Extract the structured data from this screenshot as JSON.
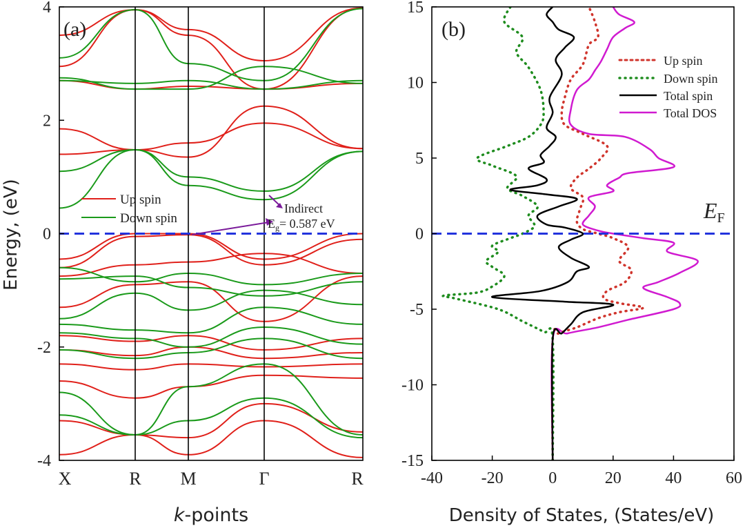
{
  "chart_data": [
    {
      "panel_label": "(a)",
      "type": "line",
      "ylabel": "Energy, (eV)",
      "xlabel_italic": "k",
      "xlabel_rest": "-points",
      "ylim": [
        -4,
        4
      ],
      "y_ticks": [
        {
          "value": -4,
          "label": "-4"
        },
        {
          "value": -2,
          "label": "-2"
        },
        {
          "value": 0,
          "label": "0"
        },
        {
          "value": 2,
          "label": "2"
        },
        {
          "value": 4,
          "label": "4"
        }
      ],
      "k_points": [
        {
          "label": "X",
          "pos": 0
        },
        {
          "label": "R",
          "pos": 1
        },
        {
          "label": "M",
          "pos": 1.7
        },
        {
          "label": "Γ",
          "pos": 2.7
        },
        {
          "label": "R",
          "pos": 4.0
        }
      ],
      "series": [
        {
          "name": "Up spin",
          "color": "#e0201a"
        },
        {
          "name": "Down spin",
          "color": "#1a9a1a"
        }
      ],
      "bands": {
        "up": [
          [
            2.95,
            3.95,
            3.6,
            3.05,
            3.98
          ],
          [
            1.85,
            1.48,
            1.6,
            1.95,
            1.5
          ],
          [
            1.4,
            1.48,
            1.35,
            2.25,
            1.5
          ],
          [
            3.5,
            3.95,
            3.5,
            2.55,
            3.98
          ],
          [
            2.7,
            2.55,
            2.6,
            2.55,
            2.65
          ],
          [
            -0.45,
            0.0,
            0.0,
            -0.45,
            0.0
          ],
          [
            -0.6,
            -0.05,
            -0.02,
            -0.55,
            -0.1
          ],
          [
            -0.75,
            -0.55,
            -0.5,
            -0.35,
            -0.7
          ],
          [
            -1.3,
            -0.9,
            -0.85,
            -1.55,
            -0.75
          ],
          [
            -1.8,
            -1.9,
            -1.8,
            -2.05,
            -1.85
          ],
          [
            -2.05,
            -2.15,
            -2.0,
            -2.2,
            -2.1
          ],
          [
            -2.3,
            -2.4,
            -2.3,
            -2.35,
            -2.3
          ],
          [
            -2.6,
            -2.9,
            -2.7,
            -2.5,
            -2.55
          ],
          [
            -3.3,
            -3.55,
            -3.6,
            -3.0,
            -3.5
          ],
          [
            -3.9,
            -3.55,
            -3.9,
            -3.3,
            -3.95
          ]
        ],
        "down": [
          [
            3.1,
            3.95,
            3.0,
            2.7,
            3.97
          ],
          [
            2.75,
            2.55,
            2.55,
            2.95,
            2.65
          ],
          [
            2.7,
            2.65,
            2.7,
            2.55,
            2.7
          ],
          [
            0.45,
            1.48,
            0.85,
            0.6,
            1.45
          ],
          [
            1.1,
            1.48,
            1.0,
            0.75,
            1.45
          ],
          [
            -0.6,
            -0.85,
            -0.7,
            -0.9,
            -0.7
          ],
          [
            -0.8,
            -0.75,
            -0.95,
            -1.1,
            -0.85
          ],
          [
            -1.5,
            -1.05,
            -1.35,
            -1.0,
            -1.25
          ],
          [
            -1.6,
            -1.7,
            -1.75,
            -1.3,
            -1.6
          ],
          [
            -1.75,
            -1.85,
            -2.0,
            -1.65,
            -1.95
          ],
          [
            -2.05,
            -2.2,
            -2.1,
            -1.85,
            -2.2
          ],
          [
            -2.8,
            -3.55,
            -2.7,
            -2.3,
            -3.55
          ],
          [
            -3.2,
            -3.55,
            -3.3,
            -2.9,
            -3.6
          ]
        ]
      },
      "fermi_level": 0,
      "annotation": {
        "line1": "Indirect",
        "gap_symbol": "E",
        "gap_sub": "g",
        "gap_value": "= 0.587 eV"
      }
    },
    {
      "panel_label": "(b)",
      "type": "line",
      "xlabel": "Density of States, (States/eV)",
      "xlim": [
        -40,
        60
      ],
      "ylim": [
        -15,
        15
      ],
      "x_ticks": [
        {
          "value": -40,
          "label": "-40"
        },
        {
          "value": -20,
          "label": "-20"
        },
        {
          "value": 0,
          "label": "0"
        },
        {
          "value": 20,
          "label": "20"
        },
        {
          "value": 40,
          "label": "40"
        },
        {
          "value": 60,
          "label": "60"
        }
      ],
      "y_ticks": [
        {
          "value": -15,
          "label": "-15"
        },
        {
          "value": -10,
          "label": "-10"
        },
        {
          "value": -5,
          "label": "-5"
        },
        {
          "value": 0,
          "label": "0"
        },
        {
          "value": 5,
          "label": "5"
        },
        {
          "value": 10,
          "label": "10"
        },
        {
          "value": 15,
          "label": "15"
        }
      ],
      "fermi_label_main": "E",
      "fermi_label_sub": "F",
      "legend_position": "top-right",
      "series": [
        {
          "name": "Up spin",
          "color": "#d0342c",
          "style": "dotted",
          "points": [
            [
              0,
              -15
            ],
            [
              0,
              -7
            ],
            [
              2,
              -6.6
            ],
            [
              8,
              -6.2
            ],
            [
              15,
              -5.6
            ],
            [
              22,
              -5.2
            ],
            [
              30,
              -4.9
            ],
            [
              22,
              -4.6
            ],
            [
              17,
              -4.3
            ],
            [
              18,
              -3.8
            ],
            [
              24,
              -3.2
            ],
            [
              26,
              -2.4
            ],
            [
              22,
              -1.8
            ],
            [
              25,
              -0.9
            ],
            [
              20,
              -0.3
            ],
            [
              15,
              0
            ],
            [
              10,
              0.3
            ],
            [
              8,
              0.8
            ],
            [
              9,
              1.6
            ],
            [
              10,
              2.4
            ],
            [
              6,
              3.0
            ],
            [
              8,
              3.7
            ],
            [
              12,
              4.3
            ],
            [
              16,
              5.0
            ],
            [
              18,
              5.8
            ],
            [
              10,
              6.6
            ],
            [
              4,
              7.2
            ],
            [
              3,
              8.0
            ],
            [
              4,
              9.0
            ],
            [
              6,
              10.2
            ],
            [
              10,
              11.2
            ],
            [
              12,
              12.5
            ],
            [
              15,
              13.0
            ],
            [
              14,
              14.0
            ],
            [
              12,
              15
            ]
          ]
        },
        {
          "name": "Down spin",
          "color": "#1e8c1e",
          "style": "dotted",
          "points": [
            [
              0,
              -15
            ],
            [
              0,
              -7
            ],
            [
              -3,
              -6.5
            ],
            [
              -10,
              -5.8
            ],
            [
              -18,
              -5.0
            ],
            [
              -32,
              -4.3
            ],
            [
              -36,
              -4.1
            ],
            [
              -25,
              -3.9
            ],
            [
              -20,
              -3.5
            ],
            [
              -16,
              -2.8
            ],
            [
              -20,
              -2.2
            ],
            [
              -22,
              -1.8
            ],
            [
              -18,
              -1.2
            ],
            [
              -20,
              -0.8
            ],
            [
              -14,
              -0.3
            ],
            [
              -10,
              0
            ],
            [
              -6,
              0.5
            ],
            [
              -8,
              1.2
            ],
            [
              -5,
              1.8
            ],
            [
              -10,
              2.5
            ],
            [
              -15,
              3.0
            ],
            [
              -12,
              3.8
            ],
            [
              -20,
              4.5
            ],
            [
              -25,
              5.0
            ],
            [
              -15,
              5.8
            ],
            [
              -8,
              6.4
            ],
            [
              -4,
              7.2
            ],
            [
              -3,
              8.0
            ],
            [
              -4,
              9.5
            ],
            [
              -8,
              11.0
            ],
            [
              -12,
              12.0
            ],
            [
              -10,
              13.0
            ],
            [
              -16,
              14.0
            ],
            [
              -14,
              15
            ]
          ]
        },
        {
          "name": "Total spin",
          "color": "#000000",
          "style": "solid",
          "points": [
            [
              0,
              -15
            ],
            [
              0,
              -7
            ],
            [
              3,
              -6.6
            ],
            [
              6,
              -6.0
            ],
            [
              10,
              -5.2
            ],
            [
              20,
              -4.7
            ],
            [
              4,
              -4.5
            ],
            [
              -20,
              -4.2
            ],
            [
              -4,
              -3.8
            ],
            [
              5,
              -3.2
            ],
            [
              8,
              -2.5
            ],
            [
              12,
              -2.2
            ],
            [
              6,
              -1.6
            ],
            [
              2,
              -0.9
            ],
            [
              6,
              -0.4
            ],
            [
              10,
              0
            ],
            [
              4,
              0.4
            ],
            [
              -2,
              0.6
            ],
            [
              -5,
              1.2
            ],
            [
              2,
              1.8
            ],
            [
              8,
              2.3
            ],
            [
              -2,
              2.6
            ],
            [
              -14,
              2.9
            ],
            [
              -5,
              3.2
            ],
            [
              -2,
              3.6
            ],
            [
              -8,
              4.3
            ],
            [
              -3,
              4.7
            ],
            [
              -4,
              5.2
            ],
            [
              -1,
              5.8
            ],
            [
              1,
              6.4
            ],
            [
              -2,
              7.0
            ],
            [
              0,
              8.0
            ],
            [
              -1,
              9.0
            ],
            [
              3,
              10.5
            ],
            [
              1,
              11.5
            ],
            [
              4,
              12.3
            ],
            [
              7,
              13.0
            ],
            [
              2,
              13.5
            ],
            [
              0,
              14.0
            ],
            [
              -2,
              14.5
            ],
            [
              0,
              15
            ]
          ]
        },
        {
          "name": "Total DOS",
          "color": "#d01ad0",
          "style": "solid",
          "points": [
            [
              0,
              -15
            ],
            [
              0,
              -7
            ],
            [
              5,
              -6.6
            ],
            [
              15,
              -6.2
            ],
            [
              25,
              -5.7
            ],
            [
              40,
              -5.0
            ],
            [
              42,
              -4.6
            ],
            [
              38,
              -4.2
            ],
            [
              30,
              -3.6
            ],
            [
              35,
              -3.2
            ],
            [
              42,
              -2.6
            ],
            [
              48,
              -1.8
            ],
            [
              38,
              -1.2
            ],
            [
              40,
              -0.6
            ],
            [
              30,
              -0.3
            ],
            [
              20,
              0
            ],
            [
              15,
              0.2
            ],
            [
              10,
              0.6
            ],
            [
              12,
              1.2
            ],
            [
              14,
              1.8
            ],
            [
              12,
              2.4
            ],
            [
              20,
              2.8
            ],
            [
              18,
              3.2
            ],
            [
              22,
              3.7
            ],
            [
              25,
              4.0
            ],
            [
              40,
              4.4
            ],
            [
              35,
              5.0
            ],
            [
              32,
              5.6
            ],
            [
              24,
              6.4
            ],
            [
              12,
              6.6
            ],
            [
              6,
              7.2
            ],
            [
              6,
              8.2
            ],
            [
              8,
              9.5
            ],
            [
              12,
              10.2
            ],
            [
              14,
              10.8
            ],
            [
              16,
              11.4
            ],
            [
              18,
              12.2
            ],
            [
              20,
              13.0
            ],
            [
              24,
              13.6
            ],
            [
              27,
              14.0
            ],
            [
              22,
              14.5
            ],
            [
              20,
              15
            ]
          ]
        }
      ]
    }
  ]
}
